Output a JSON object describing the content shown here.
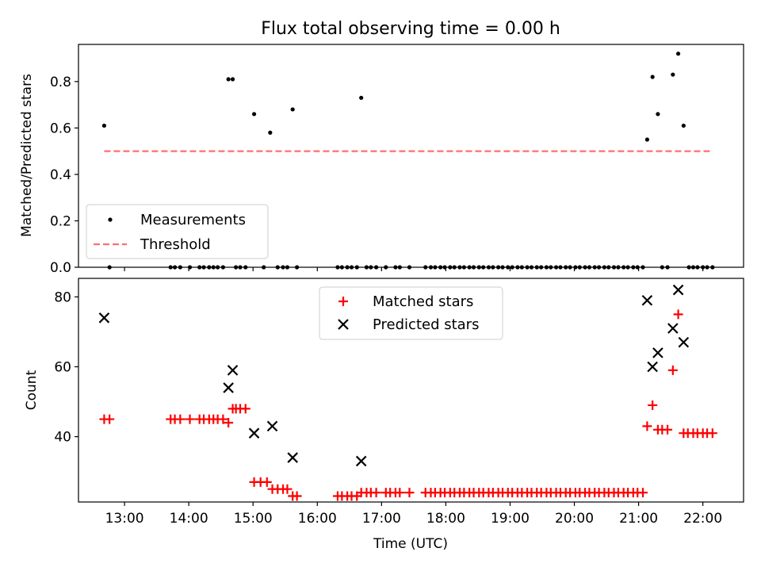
{
  "title": "Flux total observing time = 0.00 h",
  "chart_data": [
    {
      "type": "scatter",
      "ylabel": "Matched/Predicted stars",
      "xlim": [
        "12:17",
        "22:38"
      ],
      "ylim": [
        0,
        0.96
      ],
      "yticks": [
        0.0,
        0.2,
        0.4,
        0.6,
        0.8
      ],
      "ytick_labels": [
        "0.0",
        "0.2",
        "0.4",
        "0.6",
        "0.8"
      ],
      "legend": {
        "position": "lower-left"
      },
      "series": [
        {
          "name": "Measurements",
          "color": "#000000",
          "marker": "dot",
          "points": [
            [
              "12:41",
              0.61
            ],
            [
              "12:46",
              0.0
            ],
            [
              "13:43",
              0.0
            ],
            [
              "13:47",
              0.0
            ],
            [
              "13:52",
              0.0
            ],
            [
              "14:01",
              0.0
            ],
            [
              "14:10",
              0.0
            ],
            [
              "14:14",
              0.0
            ],
            [
              "14:19",
              0.0
            ],
            [
              "14:23",
              0.0
            ],
            [
              "14:27",
              0.0
            ],
            [
              "14:32",
              0.0
            ],
            [
              "14:37",
              0.81
            ],
            [
              "14:41",
              0.81
            ],
            [
              "14:44",
              0.0
            ],
            [
              "14:48",
              0.0
            ],
            [
              "14:53",
              0.0
            ],
            [
              "15:01",
              0.66
            ],
            [
              "15:10",
              0.0
            ],
            [
              "15:16",
              0.58
            ],
            [
              "15:23",
              0.0
            ],
            [
              "15:28",
              0.0
            ],
            [
              "15:32",
              0.0
            ],
            [
              "15:37",
              0.68
            ],
            [
              "15:41",
              0.0
            ],
            [
              "16:19",
              0.0
            ],
            [
              "16:23",
              0.0
            ],
            [
              "16:28",
              0.0
            ],
            [
              "16:32",
              0.0
            ],
            [
              "16:37",
              0.0
            ],
            [
              "16:41",
              0.73
            ],
            [
              "16:46",
              0.0
            ],
            [
              "16:50",
              0.0
            ],
            [
              "16:55",
              0.0
            ],
            [
              "17:04",
              0.0
            ],
            [
              "17:13",
              0.0
            ],
            [
              "17:17",
              0.0
            ],
            [
              "17:26",
              0.0
            ],
            [
              "17:41",
              0.0
            ],
            [
              "17:46",
              0.0
            ],
            [
              "17:50",
              0.0
            ],
            [
              "17:55",
              0.0
            ],
            [
              "17:59",
              0.0
            ],
            [
              "18:04",
              0.0
            ],
            [
              "18:08",
              0.0
            ],
            [
              "18:13",
              0.0
            ],
            [
              "18:17",
              0.0
            ],
            [
              "18:22",
              0.0
            ],
            [
              "18:26",
              0.0
            ],
            [
              "18:31",
              0.0
            ],
            [
              "18:35",
              0.0
            ],
            [
              "18:40",
              0.0
            ],
            [
              "18:44",
              0.0
            ],
            [
              "18:49",
              0.0
            ],
            [
              "18:53",
              0.0
            ],
            [
              "18:58",
              0.0
            ],
            [
              "19:02",
              0.0
            ],
            [
              "19:07",
              0.0
            ],
            [
              "19:11",
              0.0
            ],
            [
              "19:16",
              0.0
            ],
            [
              "19:20",
              0.0
            ],
            [
              "19:25",
              0.0
            ],
            [
              "19:29",
              0.0
            ],
            [
              "19:34",
              0.0
            ],
            [
              "19:38",
              0.0
            ],
            [
              "19:43",
              0.0
            ],
            [
              "19:47",
              0.0
            ],
            [
              "19:52",
              0.0
            ],
            [
              "19:56",
              0.0
            ],
            [
              "20:01",
              0.0
            ],
            [
              "20:05",
              0.0
            ],
            [
              "20:10",
              0.0
            ],
            [
              "20:14",
              0.0
            ],
            [
              "20:19",
              0.0
            ],
            [
              "20:23",
              0.0
            ],
            [
              "20:28",
              0.0
            ],
            [
              "20:32",
              0.0
            ],
            [
              "20:37",
              0.0
            ],
            [
              "20:41",
              0.0
            ],
            [
              "20:46",
              0.0
            ],
            [
              "20:50",
              0.0
            ],
            [
              "20:55",
              0.0
            ],
            [
              "20:59",
              0.0
            ],
            [
              "21:04",
              0.0
            ],
            [
              "21:08",
              0.55
            ],
            [
              "21:13",
              0.82
            ],
            [
              "21:18",
              0.66
            ],
            [
              "21:22",
              0.0
            ],
            [
              "21:27",
              0.0
            ],
            [
              "21:32",
              0.83
            ],
            [
              "21:37",
              0.92
            ],
            [
              "21:42",
              0.61
            ],
            [
              "21:47",
              0.0
            ],
            [
              "21:51",
              0.0
            ],
            [
              "21:55",
              0.0
            ],
            [
              "22:00",
              0.0
            ],
            [
              "22:04",
              0.0
            ],
            [
              "22:09",
              0.0
            ]
          ]
        },
        {
          "name": "Threshold",
          "color": "#ff6f6f",
          "style": "dashed",
          "points": [
            [
              "12:41",
              0.5
            ],
            [
              "22:09",
              0.5
            ]
          ]
        }
      ]
    },
    {
      "type": "scatter",
      "xlabel": "Time (UTC)",
      "ylabel": "Count",
      "xlim": [
        "12:17",
        "22:38"
      ],
      "ylim": [
        21.3,
        85.3
      ],
      "yticks": [
        40,
        60,
        80
      ],
      "ytick_labels": [
        "40",
        "60",
        "80"
      ],
      "xticks": [
        "13:00",
        "14:00",
        "15:00",
        "16:00",
        "17:00",
        "18:00",
        "19:00",
        "20:00",
        "21:00",
        "22:00"
      ],
      "legend": {
        "position": "top-center"
      },
      "series": [
        {
          "name": "Matched stars",
          "color": "#ff0000",
          "marker": "plus",
          "points": [
            [
              "12:41",
              45
            ],
            [
              "12:46",
              45
            ],
            [
              "13:43",
              45
            ],
            [
              "13:47",
              45
            ],
            [
              "13:52",
              45
            ],
            [
              "14:01",
              45
            ],
            [
              "14:10",
              45
            ],
            [
              "14:14",
              45
            ],
            [
              "14:19",
              45
            ],
            [
              "14:23",
              45
            ],
            [
              "14:27",
              45
            ],
            [
              "14:32",
              45
            ],
            [
              "14:37",
              44
            ],
            [
              "14:41",
              48
            ],
            [
              "14:44",
              48
            ],
            [
              "14:48",
              48
            ],
            [
              "14:53",
              48
            ],
            [
              "15:01",
              27
            ],
            [
              "15:07",
              27
            ],
            [
              "15:13",
              27
            ],
            [
              "15:18",
              25
            ],
            [
              "15:23",
              25
            ],
            [
              "15:28",
              25
            ],
            [
              "15:32",
              25
            ],
            [
              "15:37",
              23
            ],
            [
              "15:41",
              23
            ],
            [
              "16:19",
              23
            ],
            [
              "16:23",
              23
            ],
            [
              "16:28",
              23
            ],
            [
              "16:32",
              23
            ],
            [
              "16:37",
              23
            ],
            [
              "16:41",
              24
            ],
            [
              "16:46",
              24
            ],
            [
              "16:50",
              24
            ],
            [
              "16:55",
              24
            ],
            [
              "17:04",
              24
            ],
            [
              "17:08",
              24
            ],
            [
              "17:13",
              24
            ],
            [
              "17:17",
              24
            ],
            [
              "17:26",
              24
            ],
            [
              "17:41",
              24
            ],
            [
              "17:46",
              24
            ],
            [
              "17:50",
              24
            ],
            [
              "17:55",
              24
            ],
            [
              "17:59",
              24
            ],
            [
              "18:04",
              24
            ],
            [
              "18:08",
              24
            ],
            [
              "18:13",
              24
            ],
            [
              "18:17",
              24
            ],
            [
              "18:22",
              24
            ],
            [
              "18:26",
              24
            ],
            [
              "18:31",
              24
            ],
            [
              "18:35",
              24
            ],
            [
              "18:40",
              24
            ],
            [
              "18:44",
              24
            ],
            [
              "18:49",
              24
            ],
            [
              "18:53",
              24
            ],
            [
              "18:58",
              24
            ],
            [
              "19:02",
              24
            ],
            [
              "19:07",
              24
            ],
            [
              "19:11",
              24
            ],
            [
              "19:16",
              24
            ],
            [
              "19:20",
              24
            ],
            [
              "19:25",
              24
            ],
            [
              "19:29",
              24
            ],
            [
              "19:34",
              24
            ],
            [
              "19:38",
              24
            ],
            [
              "19:43",
              24
            ],
            [
              "19:47",
              24
            ],
            [
              "19:52",
              24
            ],
            [
              "19:56",
              24
            ],
            [
              "20:01",
              24
            ],
            [
              "20:05",
              24
            ],
            [
              "20:10",
              24
            ],
            [
              "20:14",
              24
            ],
            [
              "20:19",
              24
            ],
            [
              "20:23",
              24
            ],
            [
              "20:28",
              24
            ],
            [
              "20:32",
              24
            ],
            [
              "20:37",
              24
            ],
            [
              "20:41",
              24
            ],
            [
              "20:46",
              24
            ],
            [
              "20:50",
              24
            ],
            [
              "20:55",
              24
            ],
            [
              "20:59",
              24
            ],
            [
              "21:04",
              24
            ],
            [
              "21:08",
              43
            ],
            [
              "21:13",
              49
            ],
            [
              "21:18",
              42
            ],
            [
              "21:22",
              42
            ],
            [
              "21:27",
              42
            ],
            [
              "21:32",
              59
            ],
            [
              "21:37",
              75
            ],
            [
              "21:42",
              41
            ],
            [
              "21:46",
              41
            ],
            [
              "21:51",
              41
            ],
            [
              "21:55",
              41
            ],
            [
              "22:00",
              41
            ],
            [
              "22:04",
              41
            ],
            [
              "22:09",
              41
            ]
          ]
        },
        {
          "name": "Predicted stars",
          "color": "#000000",
          "marker": "x",
          "points": [
            [
              "12:41",
              74
            ],
            [
              "14:37",
              54
            ],
            [
              "14:41",
              59
            ],
            [
              "15:01",
              41
            ],
            [
              "15:18",
              43
            ],
            [
              "15:37",
              34
            ],
            [
              "16:41",
              33
            ],
            [
              "21:08",
              79
            ],
            [
              "21:13",
              60
            ],
            [
              "21:18",
              64
            ],
            [
              "21:32",
              71
            ],
            [
              "21:37",
              82
            ],
            [
              "21:42",
              67
            ]
          ]
        }
      ]
    }
  ]
}
